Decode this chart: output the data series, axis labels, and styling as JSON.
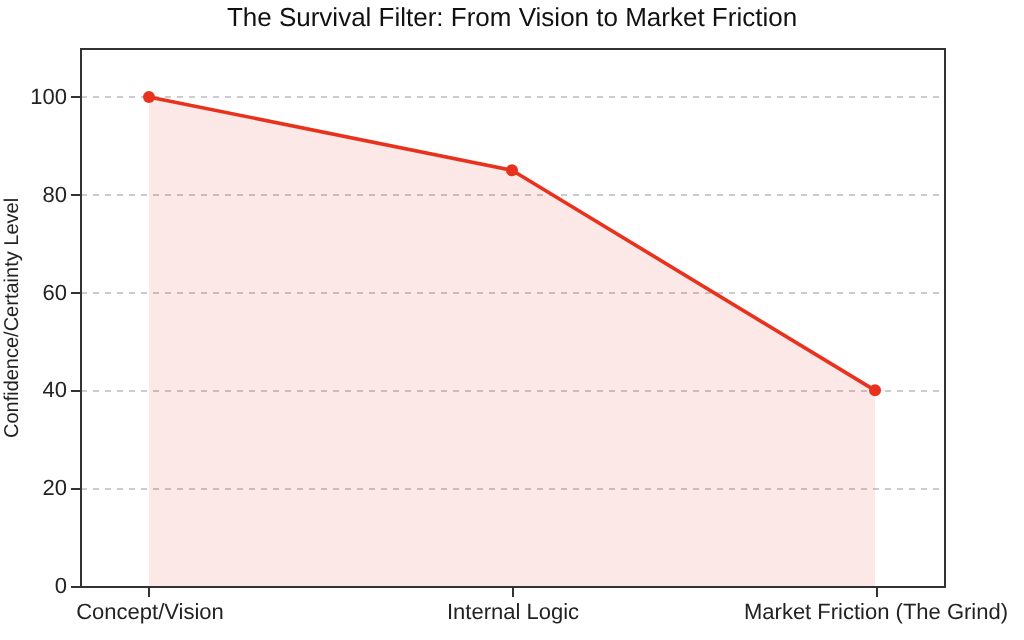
{
  "chart_data": {
    "type": "area",
    "title": "The Survival Filter: From Vision to Market Friction",
    "ylabel": "Confidence/Certainty Level",
    "categories": [
      "Concept/Vision",
      "Internal Logic",
      "Market Friction (The Grind)"
    ],
    "values": [
      100,
      85,
      40
    ],
    "color": "#e8321e",
    "ylim": [
      0,
      110
    ],
    "yticks": [
      0,
      20,
      40,
      60,
      80,
      100
    ],
    "grid": "y",
    "marker": "circle"
  }
}
